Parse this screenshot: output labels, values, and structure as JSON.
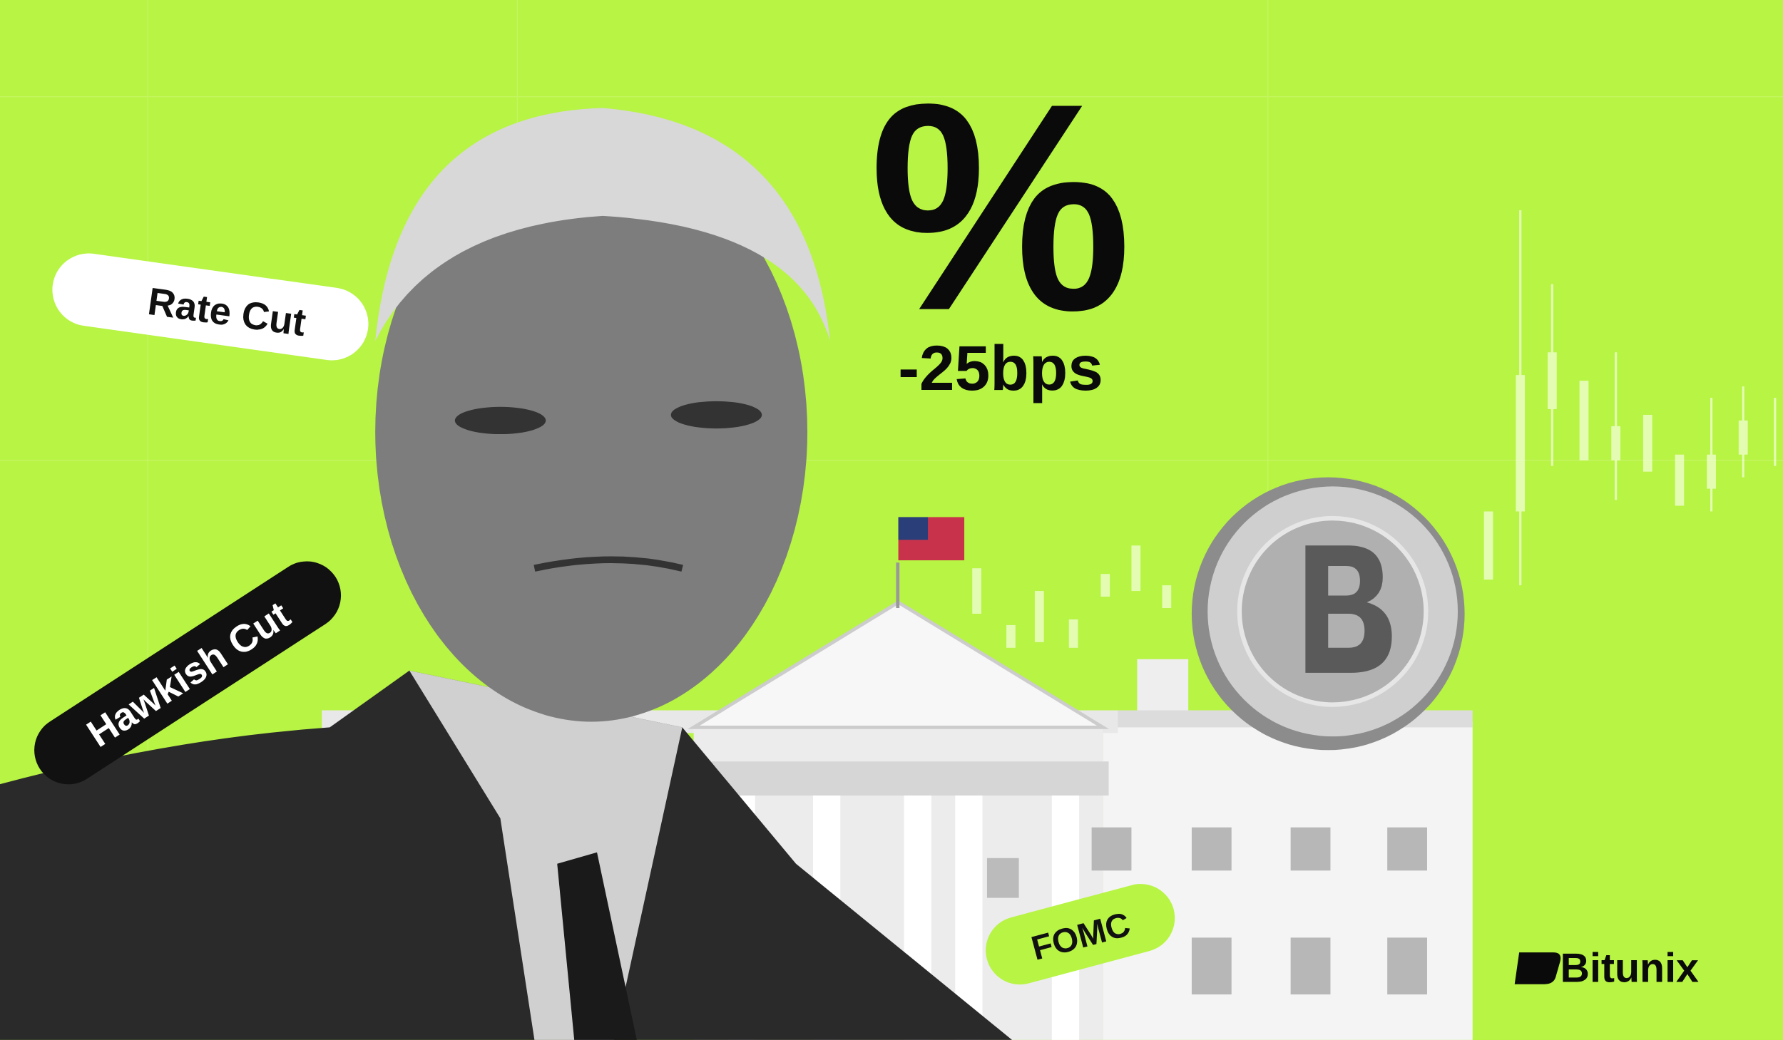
{
  "headline": {
    "symbol": "%",
    "change": "-25bps"
  },
  "tags": {
    "rate_cut": "Rate Cut",
    "hawkish_cut": "Hawkish Cut",
    "fomc": "FOMC"
  },
  "brand": {
    "name": "Bitunix"
  }
}
